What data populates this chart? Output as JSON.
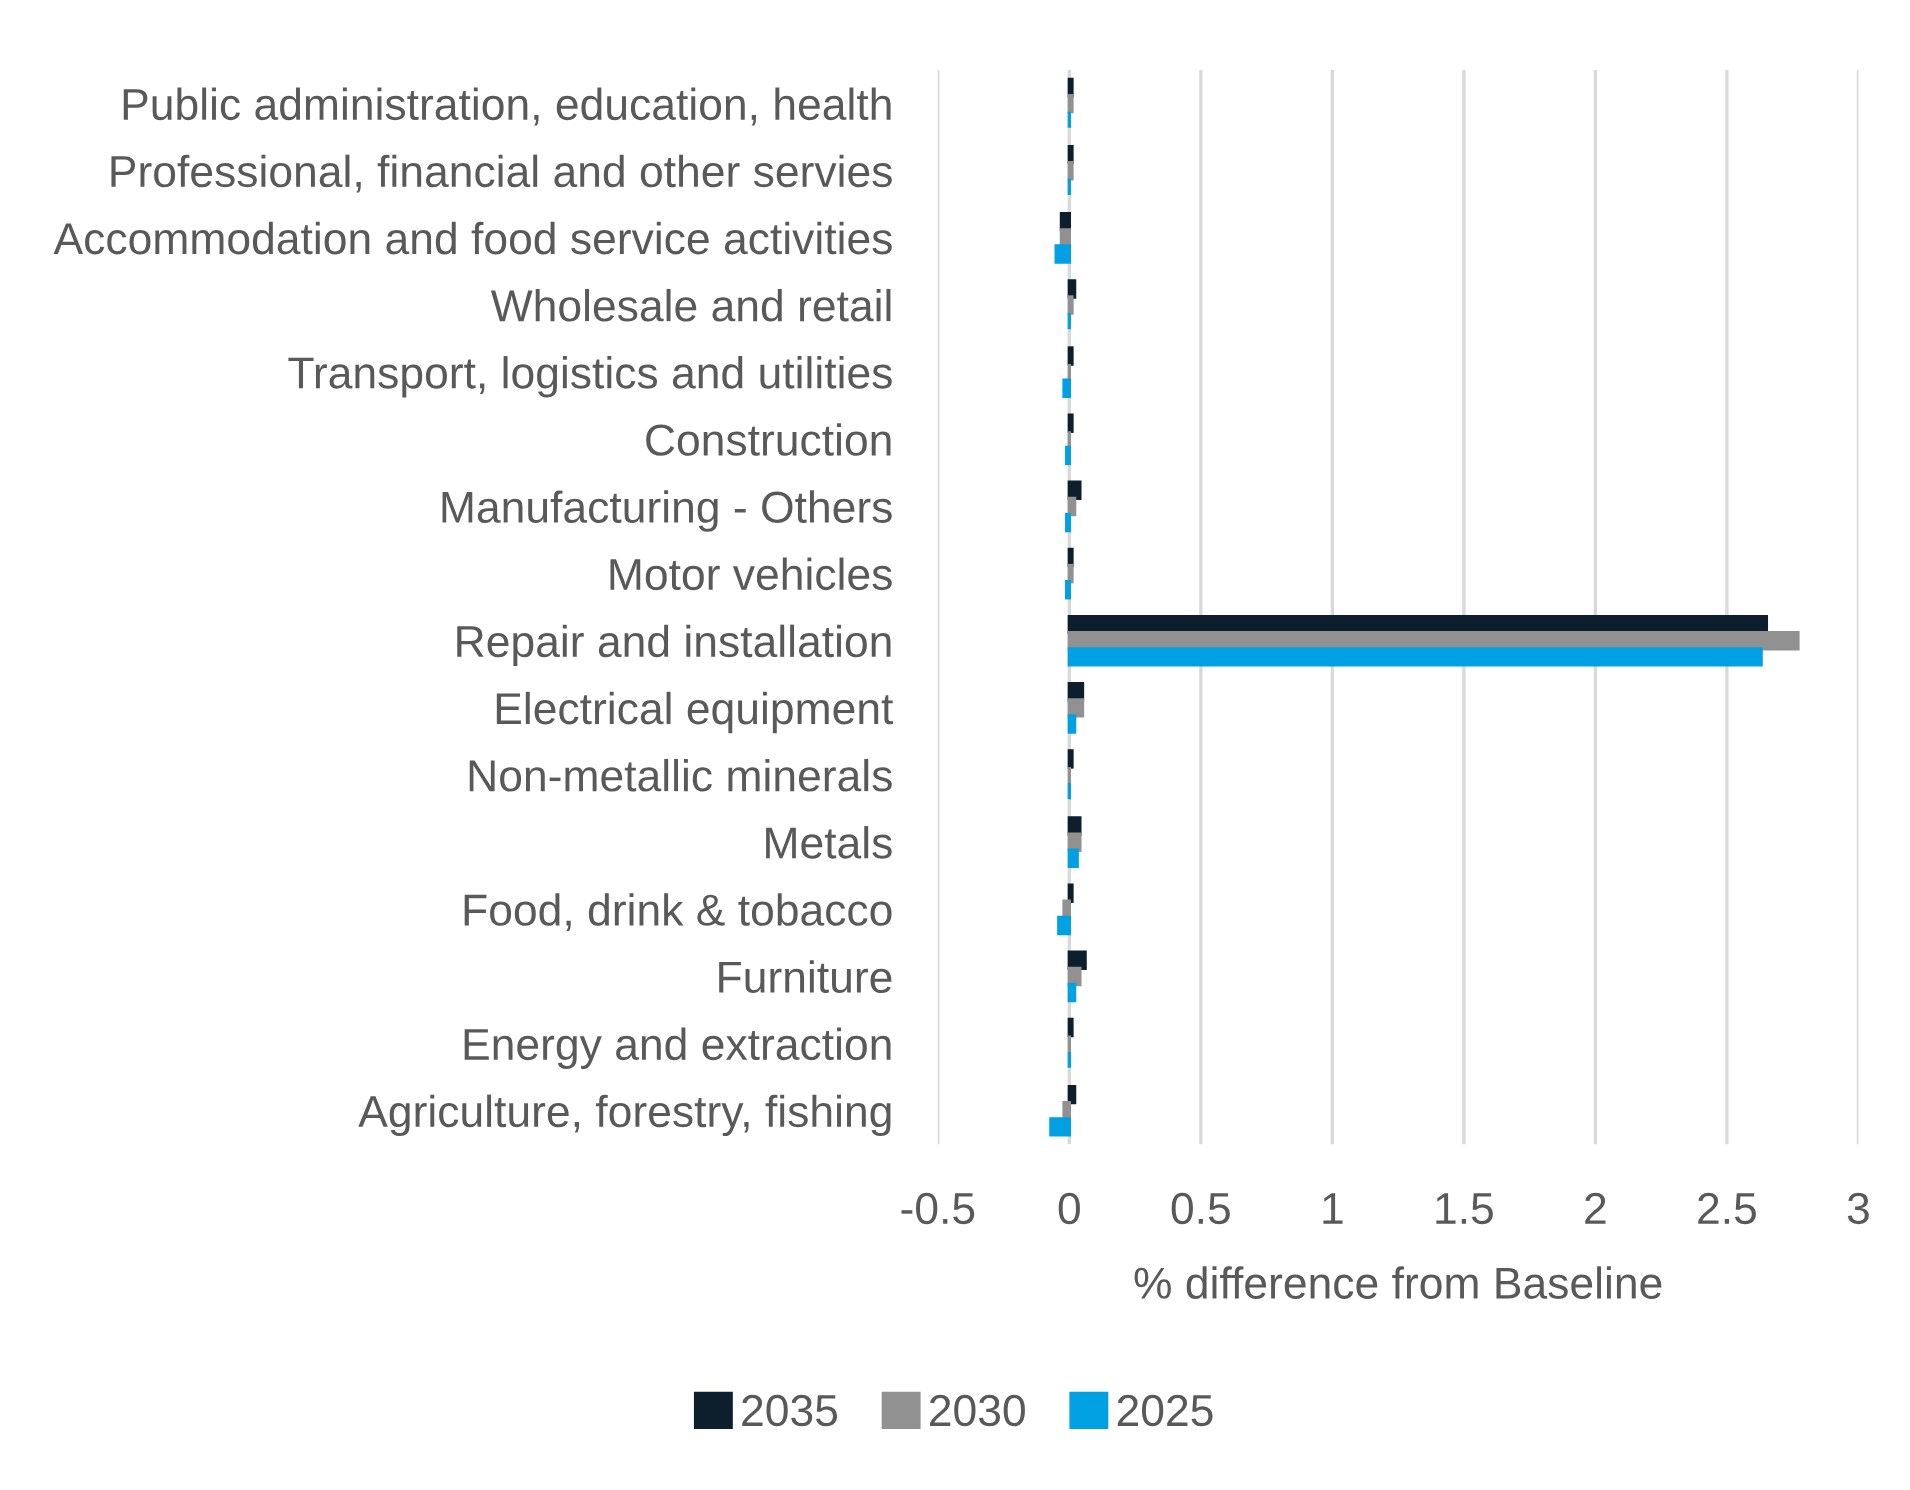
{
  "chart_data": {
    "type": "bar",
    "orientation": "horizontal",
    "categories": [
      "Public administration, education, health",
      "Professional, financial and other servies",
      "Accommodation and food service activities",
      "Wholesale and retail",
      "Transport, logistics and utilities",
      "Construction",
      "Manufacturing - Others",
      "Motor vehicles",
      "Repair and installation",
      "Electrical equipment",
      "Non-metallic minerals",
      "Metals",
      "Food, drink & tobacco",
      "Furniture",
      "Energy and extraction",
      "Agriculture, forestry, fishing"
    ],
    "series": [
      {
        "name": "2035",
        "color": "#0d1f2d",
        "values": [
          0.01,
          0.01,
          -0.03,
          0.02,
          0.01,
          0.01,
          0.04,
          0.01,
          2.65,
          0.05,
          0.01,
          0.04,
          0.01,
          0.06,
          0.01,
          0.02
        ]
      },
      {
        "name": "2030",
        "color": "#919191",
        "values": [
          0.01,
          0.01,
          -0.03,
          0.01,
          0.0,
          0.0,
          0.02,
          0.01,
          2.77,
          0.05,
          0.0,
          0.04,
          -0.02,
          0.04,
          0.0,
          -0.02
        ]
      },
      {
        "name": "2025",
        "color": "#00a0e3",
        "values": [
          0.0,
          0.0,
          -0.05,
          0.0,
          -0.02,
          -0.01,
          -0.01,
          -0.01,
          2.63,
          0.02,
          0.0,
          0.03,
          -0.04,
          0.02,
          0.0,
          -0.07
        ]
      }
    ],
    "xlabel": "% difference from Baseline",
    "xlim": [
      -0.5,
      3
    ],
    "xticks": [
      -0.5,
      0,
      0.5,
      1,
      1.5,
      2,
      2.5,
      3
    ],
    "grid": "x",
    "legend": "bottom"
  }
}
